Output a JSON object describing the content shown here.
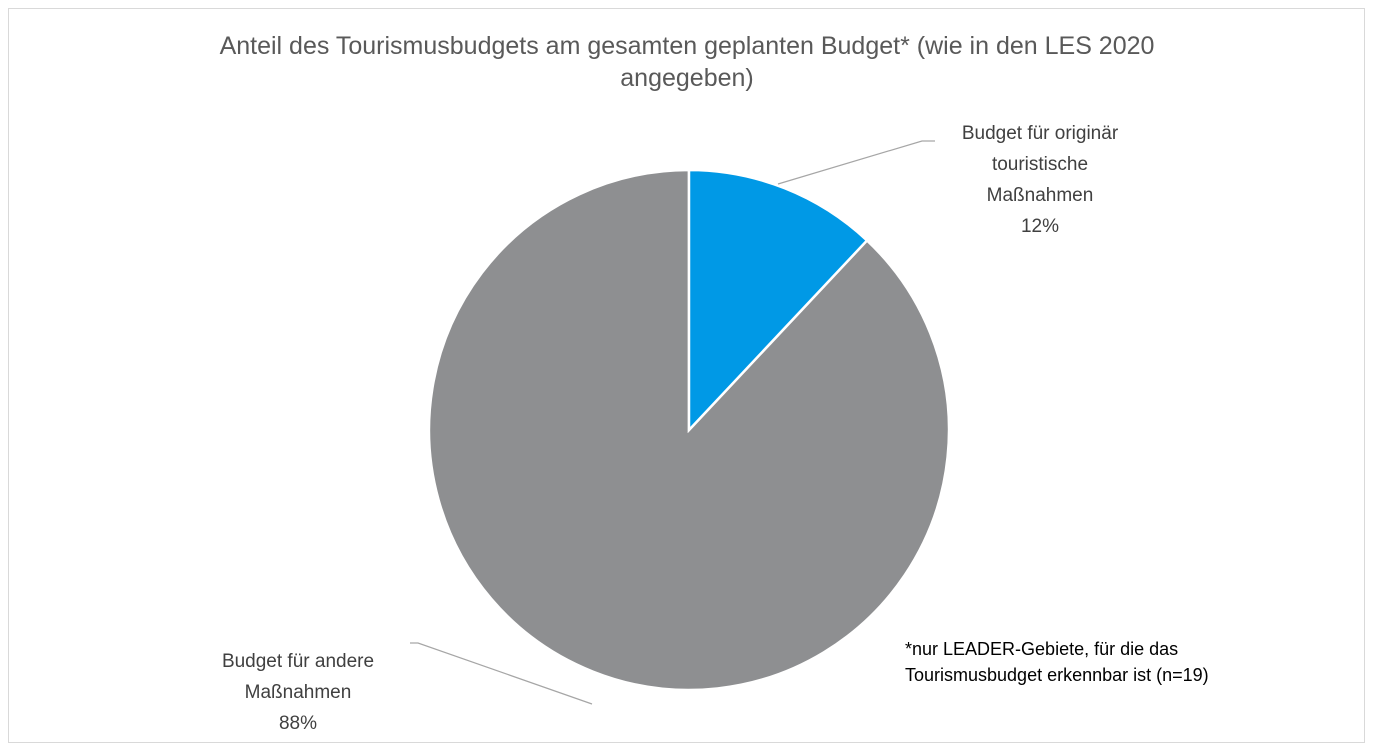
{
  "chart_data": {
    "type": "pie",
    "title": "Anteil des Tourismusbudgets am gesamten geplanten Budget* (wie in den LES 2020 angegeben)",
    "categories": [
      "Budget für originär touristische Maßnahmen",
      "Budget für andere Maßnahmen"
    ],
    "values": [
      12,
      88
    ],
    "value_labels": [
      "12%",
      "88%"
    ],
    "colors": [
      "#0099e6",
      "#8e8f91"
    ],
    "annotation": "*nur LEADER-Gebiete, für die das Tourismusbudget erkennbar ist (n=19)"
  }
}
